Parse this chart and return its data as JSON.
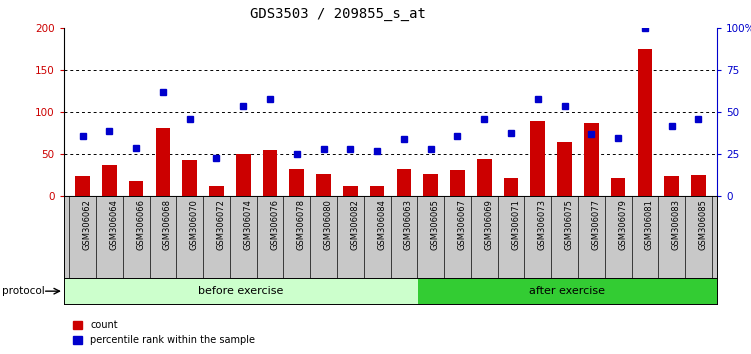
{
  "title": "GDS3503 / 209855_s_at",
  "categories": [
    "GSM306062",
    "GSM306064",
    "GSM306066",
    "GSM306068",
    "GSM306070",
    "GSM306072",
    "GSM306074",
    "GSM306076",
    "GSM306078",
    "GSM306080",
    "GSM306082",
    "GSM306084",
    "GSM306063",
    "GSM306065",
    "GSM306067",
    "GSM306069",
    "GSM306071",
    "GSM306073",
    "GSM306075",
    "GSM306077",
    "GSM306079",
    "GSM306081",
    "GSM306083",
    "GSM306085"
  ],
  "count_values": [
    24,
    37,
    18,
    82,
    43,
    13,
    50,
    55,
    33,
    27,
    12,
    12,
    33,
    27,
    32,
    45,
    22,
    90,
    65,
    87,
    22,
    175,
    24,
    26
  ],
  "percentile_values": [
    36,
    39,
    29,
    62,
    46,
    23,
    54,
    58,
    25,
    28,
    28,
    27,
    34,
    28,
    36,
    46,
    38,
    58,
    54,
    37,
    35,
    100,
    42,
    46
  ],
  "bar_color": "#cc0000",
  "dot_color": "#0000cc",
  "left_ylim": [
    0,
    200
  ],
  "right_ylim": [
    0,
    100
  ],
  "left_yticks": [
    0,
    50,
    100,
    150,
    200
  ],
  "right_yticks": [
    0,
    25,
    50,
    75,
    100
  ],
  "right_yticklabels": [
    "0",
    "25",
    "50",
    "75",
    "100%"
  ],
  "grid_values": [
    50,
    100,
    150
  ],
  "before_exercise_count": 13,
  "after_exercise_count": 11,
  "protocol_label": "protocol",
  "before_label": "before exercise",
  "after_label": "after exercise",
  "legend_count": "count",
  "legend_percentile": "percentile rank within the sample",
  "bg_color_before": "#ccffcc",
  "bg_color_after": "#33cc33",
  "label_band_color": "#c8c8c8",
  "title_fontsize": 10,
  "tick_fontsize": 7.5
}
